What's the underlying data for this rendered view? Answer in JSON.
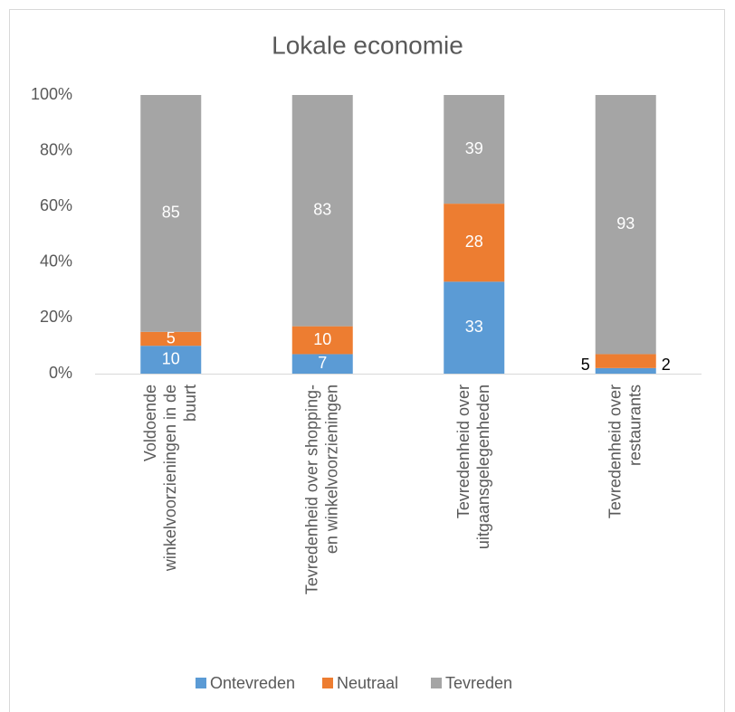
{
  "chart_data": {
    "type": "stacked_bar",
    "title": "Lokale economie",
    "categories": [
      "Voldoende winkelvoorzieningen in de buurt",
      "Tevredenheid over shopping- en winkelvoorzieningen",
      "Tevredenheid over uitgaansgelegenheden",
      "Tevredenheid over restaurants"
    ],
    "series": [
      {
        "name": "Ontevreden",
        "color": "#5b9bd5",
        "values": [
          10,
          7,
          33,
          2
        ]
      },
      {
        "name": "Neutraal",
        "color": "#ed7d31",
        "values": [
          5,
          10,
          28,
          5
        ]
      },
      {
        "name": "Tevreden",
        "color": "#a5a5a5",
        "values": [
          85,
          83,
          39,
          93
        ]
      }
    ],
    "ylim": [
      0,
      100
    ],
    "yticks": [
      {
        "value": 0,
        "label": "0%"
      },
      {
        "value": 20,
        "label": "20%"
      },
      {
        "value": 40,
        "label": "40%"
      },
      {
        "value": 60,
        "label": "60%"
      },
      {
        "value": 80,
        "label": "80%"
      },
      {
        "value": 100,
        "label": "100%"
      }
    ],
    "grid": false,
    "legend": "bottom"
  }
}
